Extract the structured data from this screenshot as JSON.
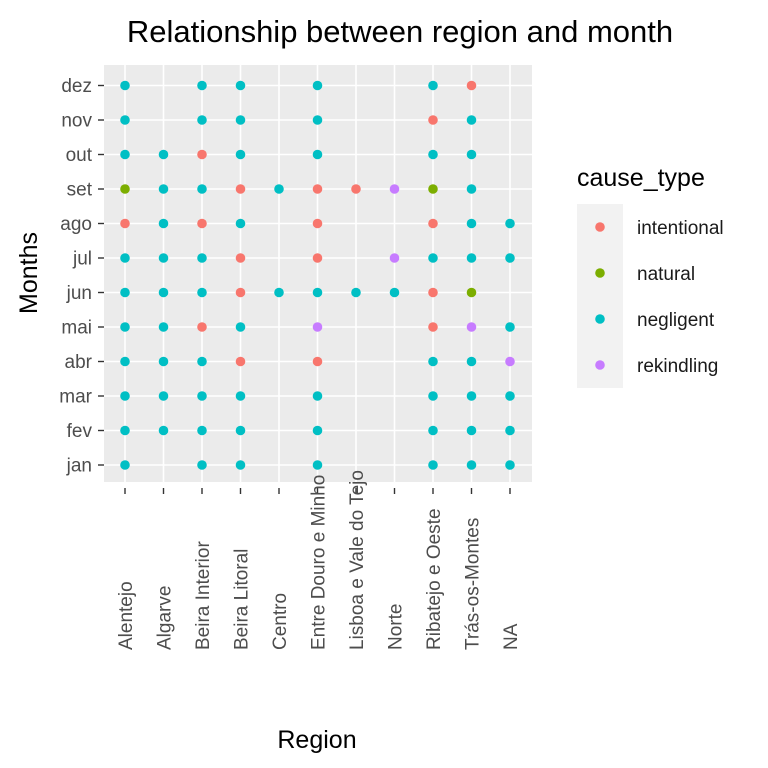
{
  "chart_data": {
    "type": "scatter",
    "title": "Relationship between region and month",
    "xlabel": "Region",
    "ylabel": "Months",
    "categories_x": [
      "Alentejo",
      "Algarve",
      "Beira Interior",
      "Beira Litoral",
      "Centro",
      "Entre Douro e Minho",
      "Lisboa e Vale do Tejo",
      "Norte",
      "Ribatejo e Oeste",
      "Trás-os-Montes",
      "NA"
    ],
    "categories_y": [
      "jan",
      "fev",
      "mar",
      "abr",
      "mai",
      "jun",
      "jul",
      "ago",
      "set",
      "out",
      "nov",
      "dez"
    ],
    "legend": {
      "title": "cause_type",
      "position": "right",
      "entries": [
        {
          "label": "intentional",
          "color": "#F8766D"
        },
        {
          "label": "natural",
          "color": "#7CAE00"
        },
        {
          "label": "negligent",
          "color": "#00BFC4"
        },
        {
          "label": "rekindling",
          "color": "#C77CFF"
        }
      ]
    },
    "grid": true,
    "panel_background": "#EBEBEB",
    "points": [
      {
        "x": "Alentejo",
        "y": "dez",
        "cause": "negligent"
      },
      {
        "x": "Alentejo",
        "y": "nov",
        "cause": "negligent"
      },
      {
        "x": "Alentejo",
        "y": "out",
        "cause": "negligent"
      },
      {
        "x": "Alentejo",
        "y": "set",
        "cause": "natural"
      },
      {
        "x": "Alentejo",
        "y": "ago",
        "cause": "intentional"
      },
      {
        "x": "Alentejo",
        "y": "jul",
        "cause": "negligent"
      },
      {
        "x": "Alentejo",
        "y": "jun",
        "cause": "negligent"
      },
      {
        "x": "Alentejo",
        "y": "mai",
        "cause": "negligent"
      },
      {
        "x": "Alentejo",
        "y": "abr",
        "cause": "negligent"
      },
      {
        "x": "Alentejo",
        "y": "mar",
        "cause": "negligent"
      },
      {
        "x": "Alentejo",
        "y": "fev",
        "cause": "negligent"
      },
      {
        "x": "Alentejo",
        "y": "jan",
        "cause": "negligent"
      },
      {
        "x": "Algarve",
        "y": "out",
        "cause": "negligent"
      },
      {
        "x": "Algarve",
        "y": "set",
        "cause": "negligent"
      },
      {
        "x": "Algarve",
        "y": "ago",
        "cause": "negligent"
      },
      {
        "x": "Algarve",
        "y": "jul",
        "cause": "negligent"
      },
      {
        "x": "Algarve",
        "y": "jun",
        "cause": "negligent"
      },
      {
        "x": "Algarve",
        "y": "mai",
        "cause": "negligent"
      },
      {
        "x": "Algarve",
        "y": "abr",
        "cause": "negligent"
      },
      {
        "x": "Algarve",
        "y": "mar",
        "cause": "negligent"
      },
      {
        "x": "Algarve",
        "y": "fev",
        "cause": "negligent"
      },
      {
        "x": "Beira Interior",
        "y": "dez",
        "cause": "negligent"
      },
      {
        "x": "Beira Interior",
        "y": "nov",
        "cause": "negligent"
      },
      {
        "x": "Beira Interior",
        "y": "out",
        "cause": "intentional"
      },
      {
        "x": "Beira Interior",
        "y": "set",
        "cause": "negligent"
      },
      {
        "x": "Beira Interior",
        "y": "ago",
        "cause": "intentional"
      },
      {
        "x": "Beira Interior",
        "y": "jul",
        "cause": "negligent"
      },
      {
        "x": "Beira Interior",
        "y": "jun",
        "cause": "negligent"
      },
      {
        "x": "Beira Interior",
        "y": "mai",
        "cause": "intentional"
      },
      {
        "x": "Beira Interior",
        "y": "abr",
        "cause": "negligent"
      },
      {
        "x": "Beira Interior",
        "y": "mar",
        "cause": "negligent"
      },
      {
        "x": "Beira Interior",
        "y": "fev",
        "cause": "negligent"
      },
      {
        "x": "Beira Interior",
        "y": "jan",
        "cause": "negligent"
      },
      {
        "x": "Beira Litoral",
        "y": "dez",
        "cause": "negligent"
      },
      {
        "x": "Beira Litoral",
        "y": "nov",
        "cause": "negligent"
      },
      {
        "x": "Beira Litoral",
        "y": "out",
        "cause": "negligent"
      },
      {
        "x": "Beira Litoral",
        "y": "set",
        "cause": "intentional"
      },
      {
        "x": "Beira Litoral",
        "y": "ago",
        "cause": "negligent"
      },
      {
        "x": "Beira Litoral",
        "y": "jul",
        "cause": "intentional"
      },
      {
        "x": "Beira Litoral",
        "y": "jun",
        "cause": "intentional"
      },
      {
        "x": "Beira Litoral",
        "y": "mai",
        "cause": "negligent"
      },
      {
        "x": "Beira Litoral",
        "y": "abr",
        "cause": "intentional"
      },
      {
        "x": "Beira Litoral",
        "y": "mar",
        "cause": "negligent"
      },
      {
        "x": "Beira Litoral",
        "y": "fev",
        "cause": "negligent"
      },
      {
        "x": "Beira Litoral",
        "y": "jan",
        "cause": "negligent"
      },
      {
        "x": "Centro",
        "y": "set",
        "cause": "negligent"
      },
      {
        "x": "Centro",
        "y": "jun",
        "cause": "negligent"
      },
      {
        "x": "Entre Douro e Minho",
        "y": "dez",
        "cause": "negligent"
      },
      {
        "x": "Entre Douro e Minho",
        "y": "nov",
        "cause": "negligent"
      },
      {
        "x": "Entre Douro e Minho",
        "y": "out",
        "cause": "negligent"
      },
      {
        "x": "Entre Douro e Minho",
        "y": "set",
        "cause": "intentional"
      },
      {
        "x": "Entre Douro e Minho",
        "y": "ago",
        "cause": "intentional"
      },
      {
        "x": "Entre Douro e Minho",
        "y": "jul",
        "cause": "intentional"
      },
      {
        "x": "Entre Douro e Minho",
        "y": "jun",
        "cause": "negligent"
      },
      {
        "x": "Entre Douro e Minho",
        "y": "mai",
        "cause": "rekindling"
      },
      {
        "x": "Entre Douro e Minho",
        "y": "abr",
        "cause": "intentional"
      },
      {
        "x": "Entre Douro e Minho",
        "y": "mar",
        "cause": "negligent"
      },
      {
        "x": "Entre Douro e Minho",
        "y": "fev",
        "cause": "negligent"
      },
      {
        "x": "Entre Douro e Minho",
        "y": "jan",
        "cause": "negligent"
      },
      {
        "x": "Lisboa e Vale do Tejo",
        "y": "set",
        "cause": "intentional"
      },
      {
        "x": "Lisboa e Vale do Tejo",
        "y": "jun",
        "cause": "negligent"
      },
      {
        "x": "Norte",
        "y": "set",
        "cause": "rekindling"
      },
      {
        "x": "Norte",
        "y": "jul",
        "cause": "rekindling"
      },
      {
        "x": "Norte",
        "y": "jun",
        "cause": "negligent"
      },
      {
        "x": "Ribatejo e Oeste",
        "y": "dez",
        "cause": "negligent"
      },
      {
        "x": "Ribatejo e Oeste",
        "y": "nov",
        "cause": "intentional"
      },
      {
        "x": "Ribatejo e Oeste",
        "y": "out",
        "cause": "negligent"
      },
      {
        "x": "Ribatejo e Oeste",
        "y": "set",
        "cause": "natural"
      },
      {
        "x": "Ribatejo e Oeste",
        "y": "ago",
        "cause": "intentional"
      },
      {
        "x": "Ribatejo e Oeste",
        "y": "jul",
        "cause": "negligent"
      },
      {
        "x": "Ribatejo e Oeste",
        "y": "jun",
        "cause": "intentional"
      },
      {
        "x": "Ribatejo e Oeste",
        "y": "mai",
        "cause": "intentional"
      },
      {
        "x": "Ribatejo e Oeste",
        "y": "abr",
        "cause": "negligent"
      },
      {
        "x": "Ribatejo e Oeste",
        "y": "mar",
        "cause": "negligent"
      },
      {
        "x": "Ribatejo e Oeste",
        "y": "fev",
        "cause": "negligent"
      },
      {
        "x": "Ribatejo e Oeste",
        "y": "jan",
        "cause": "negligent"
      },
      {
        "x": "Trás-os-Montes",
        "y": "dez",
        "cause": "intentional"
      },
      {
        "x": "Trás-os-Montes",
        "y": "nov",
        "cause": "negligent"
      },
      {
        "x": "Trás-os-Montes",
        "y": "out",
        "cause": "negligent"
      },
      {
        "x": "Trás-os-Montes",
        "y": "set",
        "cause": "negligent"
      },
      {
        "x": "Trás-os-Montes",
        "y": "ago",
        "cause": "negligent"
      },
      {
        "x": "Trás-os-Montes",
        "y": "jul",
        "cause": "negligent"
      },
      {
        "x": "Trás-os-Montes",
        "y": "jun",
        "cause": "natural"
      },
      {
        "x": "Trás-os-Montes",
        "y": "mai",
        "cause": "rekindling"
      },
      {
        "x": "Trás-os-Montes",
        "y": "abr",
        "cause": "negligent"
      },
      {
        "x": "Trás-os-Montes",
        "y": "mar",
        "cause": "negligent"
      },
      {
        "x": "Trás-os-Montes",
        "y": "fev",
        "cause": "negligent"
      },
      {
        "x": "Trás-os-Montes",
        "y": "jan",
        "cause": "negligent"
      },
      {
        "x": "NA",
        "y": "ago",
        "cause": "negligent"
      },
      {
        "x": "NA",
        "y": "jul",
        "cause": "negligent"
      },
      {
        "x": "NA",
        "y": "mai",
        "cause": "negligent"
      },
      {
        "x": "NA",
        "y": "abr",
        "cause": "rekindling"
      },
      {
        "x": "NA",
        "y": "mar",
        "cause": "negligent"
      },
      {
        "x": "NA",
        "y": "fev",
        "cause": "negligent"
      },
      {
        "x": "NA",
        "y": "jan",
        "cause": "negligent"
      }
    ]
  }
}
